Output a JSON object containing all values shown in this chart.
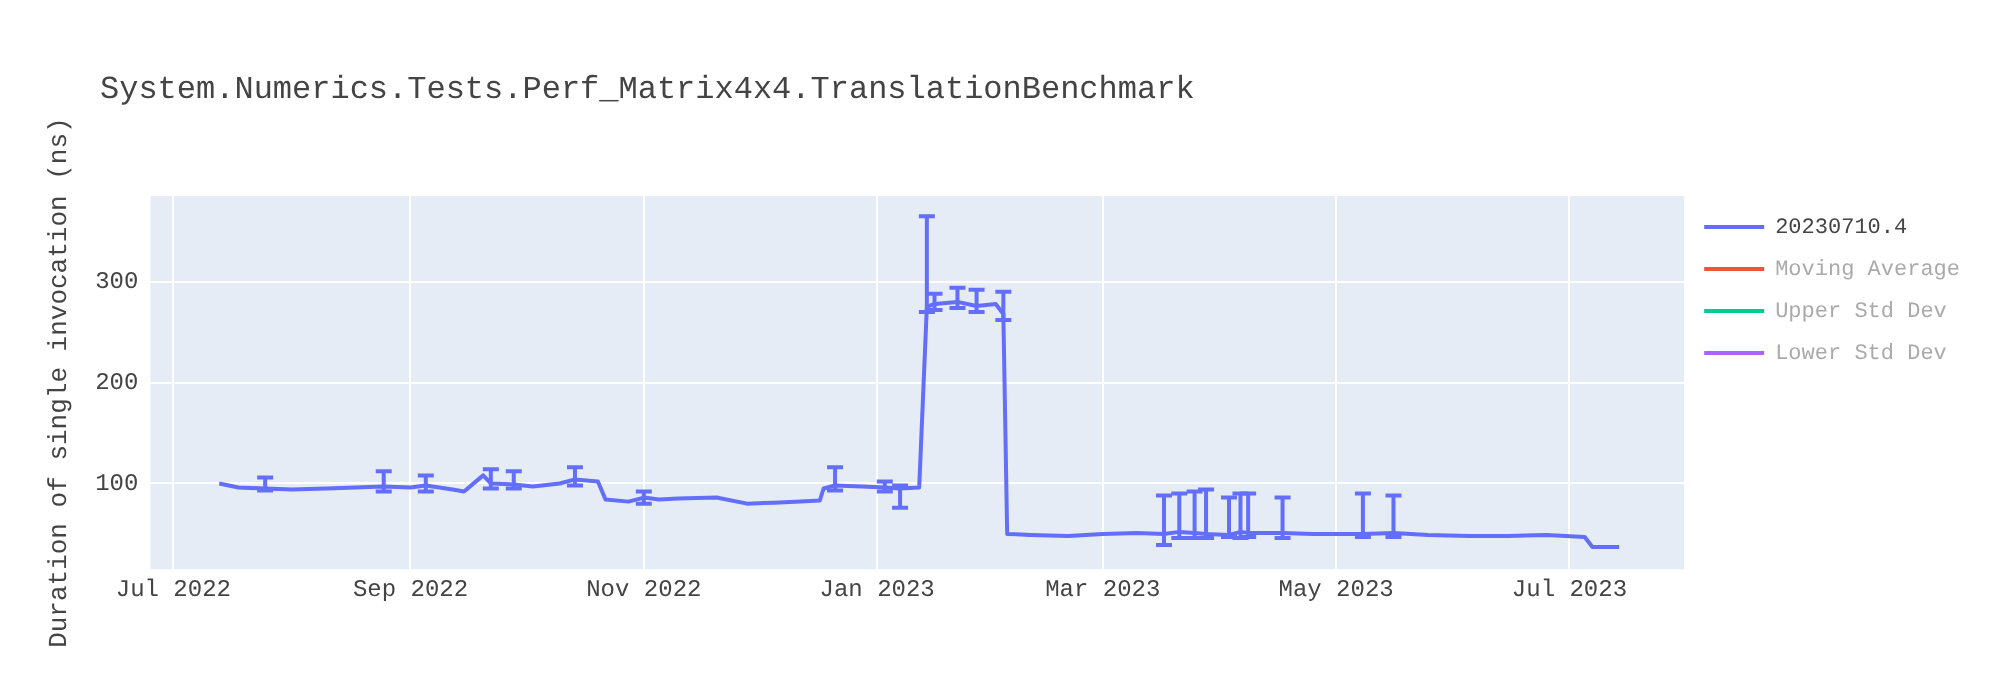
{
  "chart_data": {
    "type": "line",
    "title": "System.Numerics.Tests.Perf_Matrix4x4.TranslationBenchmark",
    "ylabel": "Duration of single invocation (ns)",
    "xlim": [
      "2022-06-25",
      "2023-07-31"
    ],
    "xticks": [
      {
        "value": "2022-07-01",
        "label": "Jul 2022"
      },
      {
        "value": "2022-09-01",
        "label": "Sep 2022"
      },
      {
        "value": "2022-11-01",
        "label": "Nov 2022"
      },
      {
        "value": "2023-01-01",
        "label": "Jan 2023"
      },
      {
        "value": "2023-03-01",
        "label": "Mar 2023"
      },
      {
        "value": "2023-05-01",
        "label": "May 2023"
      },
      {
        "value": "2023-07-01",
        "label": "Jul 2023"
      }
    ],
    "ylim": [
      15,
      385
    ],
    "yticks": [
      100,
      200,
      300
    ],
    "grid": true,
    "legend": "top right",
    "marker": "none",
    "line_style": "solid",
    "series": [
      {
        "name": "20230710.4",
        "color": "#636efa",
        "x": [
          "2022-07-13",
          "2022-07-18",
          "2022-07-25",
          "2022-08-01",
          "2022-08-10",
          "2022-08-25",
          "2022-09-01",
          "2022-09-05",
          "2022-09-12",
          "2022-09-15",
          "2022-09-20",
          "2022-09-22",
          "2022-09-28",
          "2022-10-03",
          "2022-10-10",
          "2022-10-14",
          "2022-10-20",
          "2022-10-22",
          "2022-10-28",
          "2022-11-01",
          "2022-11-05",
          "2022-11-10",
          "2022-11-20",
          "2022-11-28",
          "2022-12-05",
          "2022-12-12",
          "2022-12-17",
          "2022-12-18",
          "2022-12-21",
          "2022-12-28",
          "2023-01-03",
          "2023-01-07",
          "2023-01-12",
          "2023-01-14",
          "2023-01-16",
          "2023-01-22",
          "2023-01-27",
          "2023-02-01",
          "2023-02-03",
          "2023-02-04",
          "2023-02-10",
          "2023-02-20",
          "2023-03-01",
          "2023-03-10",
          "2023-03-17",
          "2023-03-21",
          "2023-03-25",
          "2023-03-28",
          "2023-04-03",
          "2023-04-06",
          "2023-04-08",
          "2023-04-17",
          "2023-04-25",
          "2023-05-08",
          "2023-05-16",
          "2023-05-25",
          "2023-06-05",
          "2023-06-15",
          "2023-06-25",
          "2023-07-05",
          "2023-07-07",
          "2023-07-14"
        ],
        "values": [
          100,
          96,
          95,
          94,
          95,
          97,
          96,
          98,
          94,
          92,
          108,
          100,
          99,
          97,
          100,
          104,
          102,
          84,
          82,
          86,
          84,
          85,
          86,
          80,
          81,
          82,
          83,
          95,
          98,
          97,
          96,
          95,
          96,
          275,
          278,
          280,
          276,
          278,
          268,
          50,
          49,
          48,
          50,
          51,
          50,
          52,
          51,
          50,
          49,
          52,
          51,
          51,
          50,
          50,
          51,
          49,
          48,
          48,
          49,
          47,
          37,
          37
        ],
        "errors": [
          null,
          null,
          [
            93,
            106
          ],
          null,
          null,
          [
            92,
            112
          ],
          null,
          [
            92,
            108
          ],
          null,
          null,
          null,
          [
            95,
            114
          ],
          [
            95,
            112
          ],
          null,
          null,
          [
            98,
            116
          ],
          null,
          null,
          null,
          [
            80,
            92
          ],
          null,
          null,
          null,
          null,
          null,
          null,
          null,
          null,
          [
            93,
            116
          ],
          null,
          [
            92,
            102
          ],
          [
            76,
            98
          ],
          null,
          [
            270,
            365
          ],
          [
            272,
            288
          ],
          [
            274,
            294
          ],
          [
            270,
            292
          ],
          null,
          [
            262,
            290
          ],
          null,
          null,
          null,
          null,
          null,
          [
            39,
            88
          ],
          [
            46,
            90
          ],
          [
            46,
            92
          ],
          [
            46,
            94
          ],
          [
            47,
            86
          ],
          [
            46,
            90
          ],
          [
            47,
            90
          ],
          [
            46,
            86
          ],
          null,
          [
            47,
            90
          ],
          [
            47,
            88
          ],
          null,
          null,
          null,
          null,
          null,
          null,
          null
        ]
      },
      {
        "name": "Moving Average",
        "color": "#ef553b"
      },
      {
        "name": "Upper Std Dev",
        "color": "#00cc96"
      },
      {
        "name": "Lower Std Dev",
        "color": "#ab63fa"
      }
    ]
  }
}
